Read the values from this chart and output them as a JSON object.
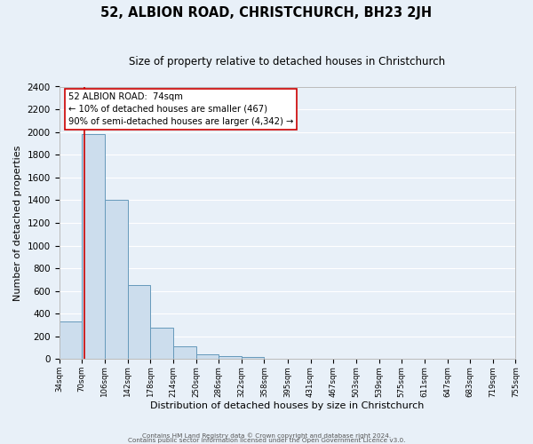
{
  "title": "52, ALBION ROAD, CHRISTCHURCH, BH23 2JH",
  "subtitle": "Size of property relative to detached houses in Christchurch",
  "xlabel": "Distribution of detached houses by size in Christchurch",
  "ylabel": "Number of detached properties",
  "bin_edges": [
    34,
    70,
    106,
    142,
    178,
    214,
    250,
    286,
    322,
    358,
    395,
    431,
    467,
    503,
    539,
    575,
    611,
    647,
    683,
    719,
    755
  ],
  "bar_heights": [
    330,
    1980,
    1400,
    650,
    280,
    110,
    45,
    30,
    20,
    0,
    0,
    0,
    0,
    0,
    0,
    0,
    0,
    0,
    0,
    0
  ],
  "bar_color": "#ccdded",
  "bar_edge_color": "#6699bb",
  "property_line_x": 74,
  "property_line_color": "#cc0000",
  "ylim": [
    0,
    2400
  ],
  "yticks": [
    0,
    200,
    400,
    600,
    800,
    1000,
    1200,
    1400,
    1600,
    1800,
    2000,
    2200,
    2400
  ],
  "xtick_labels": [
    "34sqm",
    "70sqm",
    "106sqm",
    "142sqm",
    "178sqm",
    "214sqm",
    "250sqm",
    "286sqm",
    "322sqm",
    "358sqm",
    "395sqm",
    "431sqm",
    "467sqm",
    "503sqm",
    "539sqm",
    "575sqm",
    "611sqm",
    "647sqm",
    "683sqm",
    "719sqm",
    "755sqm"
  ],
  "annotation_line1": "52 ALBION ROAD:  74sqm",
  "annotation_line2": "← 10% of detached houses are smaller (467)",
  "annotation_line3": "90% of semi-detached houses are larger (4,342) →",
  "annotation_box_color": "#ffffff",
  "annotation_box_edge": "#cc0000",
  "footer1": "Contains HM Land Registry data © Crown copyright and database right 2024.",
  "footer2": "Contains public sector information licensed under the Open Government Licence v3.0.",
  "bg_color": "#e8f0f8",
  "plot_bg_color": "#e8f0f8",
  "grid_color": "#ffffff",
  "title_fontsize": 10.5,
  "subtitle_fontsize": 8.5
}
